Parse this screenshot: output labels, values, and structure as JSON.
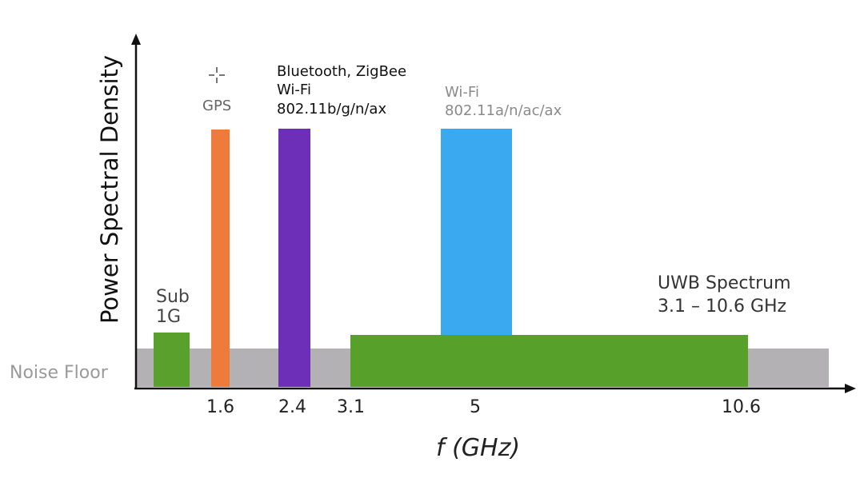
{
  "axes": {
    "y_label": "Power Spectral Density",
    "x_label": "f (GHz)"
  },
  "noise_floor": {
    "label": "Noise Floor",
    "color": "#b3b1b3"
  },
  "x_ticks": [
    "1.6",
    "2.4",
    "3.1",
    "5",
    "10.6"
  ],
  "bands": {
    "sub1g": {
      "lines": [
        "Sub",
        "1G"
      ],
      "color": "#5aa02c"
    },
    "gps": {
      "icon": "crosshair-icon",
      "label": "GPS",
      "color": "#ee7a3c"
    },
    "bt_wifi_24": {
      "lines": [
        "Bluetooth, ZigBee",
        "Wi-Fi",
        "802.11b/g/n/ax"
      ],
      "color": "#6e2fb8"
    },
    "wifi_5": {
      "lines": [
        "Wi-Fi",
        "802.11a/n/ac/ax"
      ],
      "color": "#3aa9f0"
    },
    "uwb": {
      "lines": [
        "UWB Spectrum",
        "3.1 – 10.6 GHz"
      ],
      "color": "#57a12a"
    }
  }
}
